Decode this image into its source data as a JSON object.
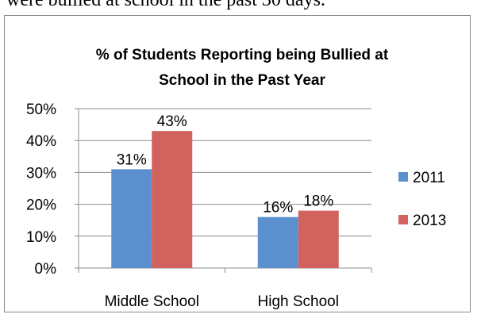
{
  "page": {
    "top_text": "were bullied at school in the past 30 days."
  },
  "chart_data": {
    "type": "bar",
    "title_lines": [
      "% of Students Reporting being Bullied at",
      "School in the Past Year"
    ],
    "categories": [
      "Middle School",
      "High School"
    ],
    "series": [
      {
        "name": "2011",
        "values": [
          31,
          16
        ],
        "color": "#5b8fce"
      },
      {
        "name": "2013",
        "values": [
          43,
          18
        ],
        "color": "#d1625e"
      }
    ],
    "data_labels": [
      [
        "31%",
        "16%"
      ],
      [
        "43%",
        "18%"
      ]
    ],
    "ylim": [
      0,
      50
    ],
    "yticks": [
      0,
      10,
      20,
      30,
      40,
      50
    ],
    "ytick_labels": [
      "0%",
      "10%",
      "20%",
      "30%",
      "40%",
      "50%"
    ],
    "grid": true,
    "legend_position": "right"
  }
}
